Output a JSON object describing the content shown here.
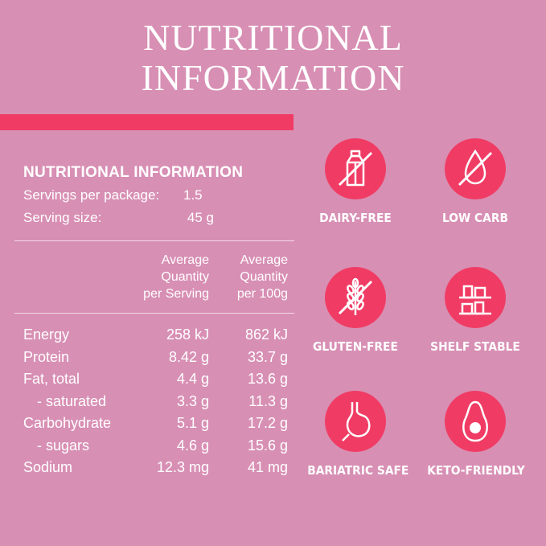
{
  "title": {
    "line1": "NUTRITIONAL",
    "line2": "INFORMATION"
  },
  "panel": {
    "heading": "NUTRITIONAL INFORMATION",
    "servings_label": "Servings per package:",
    "servings_value": "1.5",
    "serving_size_label": "Serving size:",
    "serving_size_value": "45 g",
    "col1_header": [
      "Average",
      "Quantity",
      "per Serving"
    ],
    "col2_header": [
      "Average",
      "Quantity",
      "per 100g"
    ],
    "rows": [
      {
        "label": "Energy",
        "per_serving": "258 kJ",
        "per_100g": "862 kJ"
      },
      {
        "label": "Protein",
        "per_serving": "8.42 g",
        "per_100g": "33.7 g"
      },
      {
        "label": "Fat, total",
        "per_serving": "4.4 g",
        "per_100g": "13.6 g"
      },
      {
        "label": "- saturated",
        "per_serving": "3.3 g",
        "per_100g": "11.3 g"
      },
      {
        "label": "Carbohydrate",
        "per_serving": "5.1 g",
        "per_100g": "17.2 g"
      },
      {
        "label": "- sugars",
        "per_serving": "4.6 g",
        "per_100g": "15.6 g"
      },
      {
        "label": "Sodium",
        "per_serving": "12.3 mg",
        "per_100g": "41 mg"
      }
    ]
  },
  "badges": [
    {
      "label": "DAIRY-FREE",
      "icon": "milk-carton-crossed-icon"
    },
    {
      "label": "LOW CARB",
      "icon": "drop-crossed-icon"
    },
    {
      "label": "GLUTEN-FREE",
      "icon": "wheat-crossed-icon"
    },
    {
      "label": "SHELF STABLE",
      "icon": "shelf-jars-icon"
    },
    {
      "label": "BARIATRIC SAFE",
      "icon": "stomach-icon"
    },
    {
      "label": "KETO-FRIENDLY",
      "icon": "avocado-icon"
    }
  ],
  "colors": {
    "background": "#d88fb4",
    "accent": "#f03c64",
    "text": "#ffffff"
  }
}
